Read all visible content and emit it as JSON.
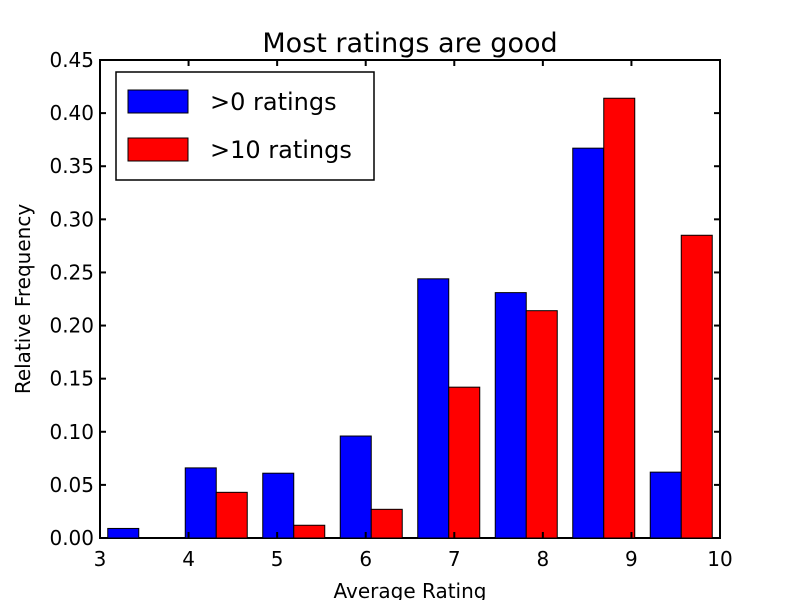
{
  "chart_data": {
    "type": "bar",
    "title": "Most ratings are good",
    "xlabel": "Average Rating",
    "ylabel": "Relative Frequency",
    "xlim": [
      3,
      10
    ],
    "ylim": [
      0,
      0.45
    ],
    "x_ticks": [
      "3",
      "4",
      "5",
      "6",
      "7",
      "8",
      "9",
      "10"
    ],
    "y_ticks": [
      "0.00",
      "0.05",
      "0.10",
      "0.15",
      "0.20",
      "0.25",
      "0.30",
      "0.35",
      "0.40",
      "0.45"
    ],
    "bin_edges": [
      3.0,
      3.875,
      4.75,
      5.625,
      6.5,
      7.375,
      8.25,
      9.125,
      10.0
    ],
    "series": [
      {
        "name": ">0 ratings",
        "color": "#0000ff",
        "values": [
          0.009,
          0.066,
          0.061,
          0.096,
          0.244,
          0.231,
          0.367,
          0.062
        ]
      },
      {
        "name": ">10 ratings",
        "color": "#ff0000",
        "values": [
          0.0,
          0.043,
          0.012,
          0.027,
          0.142,
          0.214,
          0.414,
          0.285
        ]
      }
    ],
    "legend": "top-left",
    "grid": false
  }
}
